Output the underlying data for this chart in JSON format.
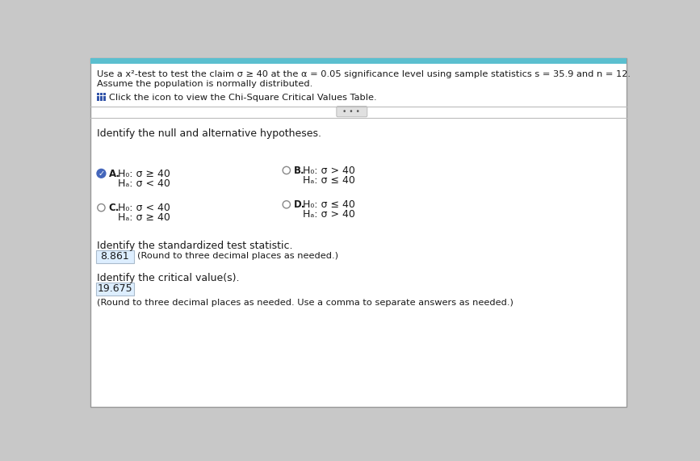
{
  "bg_color": "#c8c8c8",
  "page_bg": "#f0f0f0",
  "header_bg": "#5bbfcf",
  "header_text_line1": "Use a x²-test to test the claim σ ≥ 40 at the α = 0.05 significance level using sample statistics s = 35.9 and n = 12.",
  "header_text_line2": "Assume the population is normally distributed.",
  "click_text": "Click the icon to view the Chi-Square Critical Values Table.",
  "section1_title": "Identify the null and alternative hypotheses.",
  "option_A_H0": "H₀: σ ≥ 40",
  "option_A_Ha": "Hₐ: σ < 40",
  "option_B_H0": "H₀: σ > 40",
  "option_B_Ha": "Hₐ: σ ≤ 40",
  "option_C_H0": "H₀: σ < 40",
  "option_C_Ha": "Hₐ: σ ≥ 40",
  "option_D_H0": "H₀: σ ≤ 40",
  "option_D_Ha": "Hₐ: σ > 40",
  "section2_title": "Identify the standardized test statistic.",
  "test_stat_value": "8.861",
  "test_stat_note": "(Round to three decimal places as needed.)",
  "section3_title": "Identify the critical value(s).",
  "critical_value": "19.675",
  "critical_note": "(Round to three decimal places as needed. Use a comma to separate answers as needed.)",
  "separator_dots": "• • •",
  "text_color": "#1a1a1a",
  "radio_border": "#888888",
  "check_fill": "#4466bb",
  "grid_icon_color": "#3355aa",
  "input_bg": "#ddeeff",
  "input_border": "#aabbcc",
  "white": "#ffffff",
  "line_color": "#bbbbbb"
}
